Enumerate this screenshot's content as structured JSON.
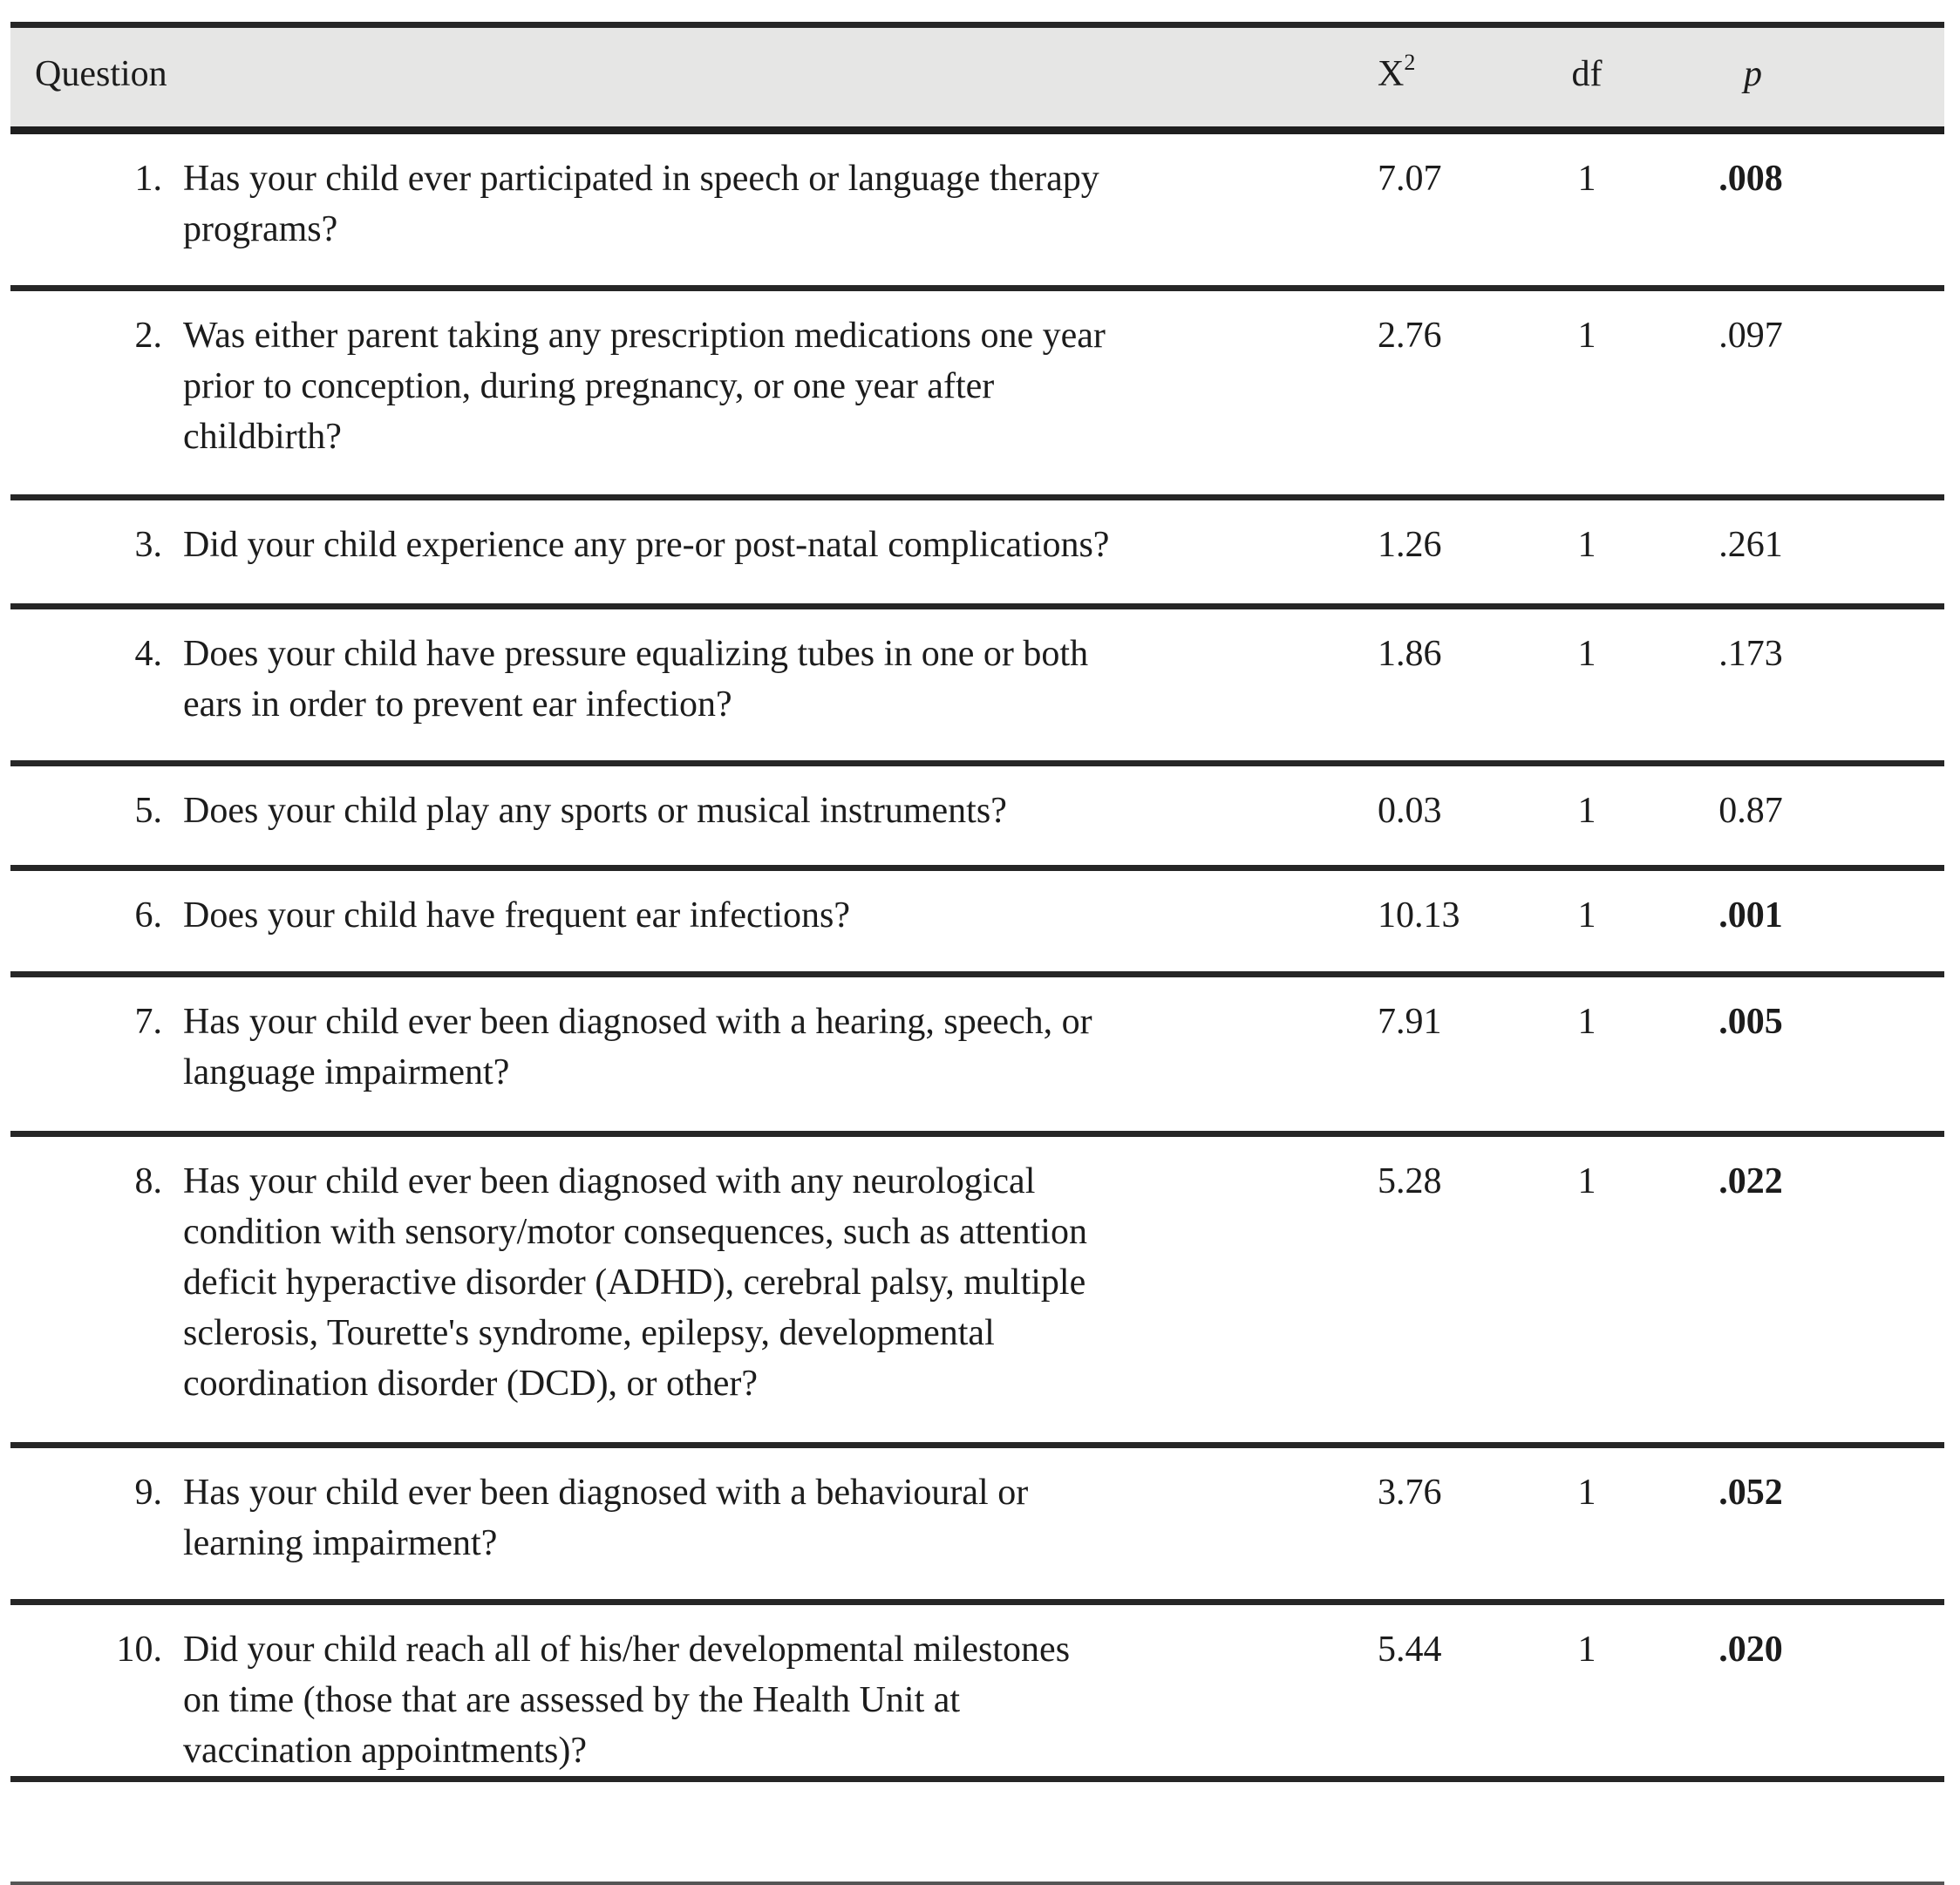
{
  "colors": {
    "header_background": "#e6e6e5",
    "rule_dark": "#262626",
    "rule_bottom_light": "#555555",
    "text": "#1c1c1c"
  },
  "table": {
    "header": {
      "question_label": "Question",
      "chi2_base": "X",
      "chi2_sup": "2",
      "df_label": "df",
      "p_label": "p"
    },
    "rows": [
      {
        "num": "1.",
        "question": "Has your child ever participated in speech or language therapy\nprograms?",
        "chi2": "7.07",
        "df": "1",
        "p": ".008",
        "p_weight": "bold"
      },
      {
        "num": "2.",
        "question": "Was either parent taking any prescription medications one year\nprior to conception, during pregnancy, or one year after\nchildbirth?",
        "chi2": "2.76",
        "df": "1",
        "p": ".097",
        "p_weight": "normal"
      },
      {
        "num": "3.",
        "question": "Did your child experience any pre-or post-natal complications?",
        "chi2": "1.26",
        "df": "1",
        "p": ".261",
        "p_weight": "normal"
      },
      {
        "num": "4.",
        "question": "Does your child have pressure equalizing tubes in one or both\nears in order to prevent ear infection?",
        "chi2": "1.86",
        "df": "1",
        "p": ".173",
        "p_weight": "normal"
      },
      {
        "num": "5.",
        "question": "Does your child play any sports or musical instruments?",
        "chi2": "0.03",
        "df": "1",
        "p": "0.87",
        "p_weight": "normal"
      },
      {
        "num": "6.",
        "question": "Does your child have frequent ear infections?",
        "chi2": "10.13",
        "df": "1",
        "p": ".001",
        "p_weight": "bold"
      },
      {
        "num": "7.",
        "question": "Has your child ever been diagnosed with a hearing, speech, or\nlanguage impairment?",
        "chi2": "7.91",
        "df": "1",
        "p": ".005",
        "p_weight": "bold"
      },
      {
        "num": "8.",
        "question": "Has your child ever been diagnosed with any neurological\ncondition with sensory/motor consequences, such as attention\ndeficit hyperactive disorder (ADHD), cerebral palsy, multiple\nsclerosis, Tourette's syndrome, epilepsy, developmental\ncoordination disorder (DCD), or other?",
        "chi2": "5.28",
        "df": "1",
        "p": ".022",
        "p_weight": "bold"
      },
      {
        "num": "9.",
        "question": "Has your child ever been diagnosed with a behavioural or\nlearning impairment?",
        "chi2": "3.76",
        "df": "1",
        "p": ".052",
        "p_weight": "bold"
      },
      {
        "num": "10.",
        "question": "Did your child reach all of his/her developmental milestones\non time (those that are assessed by the Health Unit at\nvaccination appointments)?",
        "chi2": "5.44",
        "df": "1",
        "p": ".020",
        "p_weight": "bold"
      }
    ]
  }
}
